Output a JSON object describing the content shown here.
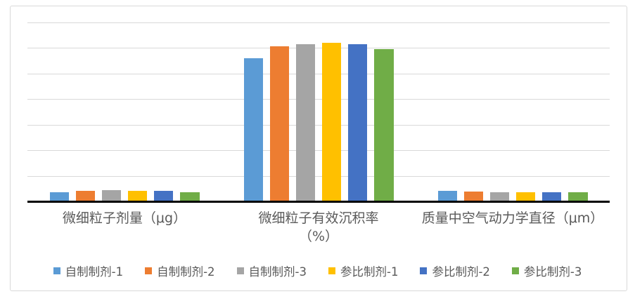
{
  "chart_data": {
    "type": "bar",
    "categories": [
      "微细粒子剂量（μg）",
      "微细粒子有效沉积率（%）",
      "质量中空气动力学直径（μm）"
    ],
    "category_label_lines": [
      [
        "微细粒子剂量（μg）"
      ],
      [
        "微细粒子有效沉积率",
        "（%）"
      ],
      [
        "质量中空气动力学直径（μm）"
      ]
    ],
    "series": [
      {
        "name": "自制制剂-1",
        "color": "#5B9BD5",
        "values": [
          3.5,
          55.7,
          3.8
        ]
      },
      {
        "name": "自制制剂-2",
        "color": "#ED7D31",
        "values": [
          3.9,
          60.4,
          3.6
        ]
      },
      {
        "name": "自制制剂-3",
        "color": "#A5A5A5",
        "values": [
          4.3,
          61.2,
          3.4
        ]
      },
      {
        "name": "参比制剂-1",
        "color": "#FFC000",
        "values": [
          4.0,
          61.9,
          3.4
        ]
      },
      {
        "name": "参比制剂-2",
        "color": "#4472C4",
        "values": [
          3.9,
          61.3,
          3.4
        ]
      },
      {
        "name": "参比制剂-3",
        "color": "#70AD47",
        "values": [
          3.5,
          59.4,
          3.5
        ]
      }
    ],
    "ylim": [
      0,
      70
    ],
    "gridline_step": 10,
    "grid": true,
    "legend_position": "bottom",
    "colors": {
      "gridline": "#D9D9D9",
      "axis": "#000000",
      "label": "#595959",
      "border": "#D9D9D9",
      "background": "#FFFFFF"
    }
  }
}
